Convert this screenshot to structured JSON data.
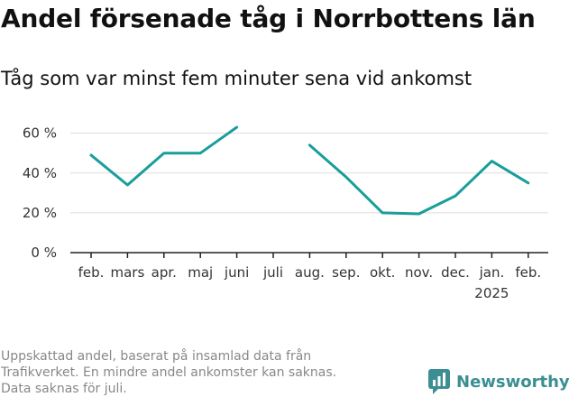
{
  "header": {
    "title": "Andel försenade tåg i Norrbottens län",
    "subtitle": "Tåg som var minst fem minuter sena vid ankomst"
  },
  "footer": {
    "note_lines": [
      "Uppskattad andel, baserat på insamlad data från",
      "Trafikverket. En mindre andel ankomster kan saknas.",
      "Data saknas för juli."
    ],
    "brand": "Newsworthy"
  },
  "colors": {
    "line": "#199e9a",
    "grid": "#dddddd",
    "axis": "#222222",
    "text": "#333333",
    "brand": "#3b8f93"
  },
  "chart_data": {
    "type": "line",
    "categories": [
      "feb.",
      "mars",
      "apr.",
      "maj",
      "juni",
      "juli",
      "aug.",
      "sep.",
      "okt.",
      "nov.",
      "dec.",
      "jan.",
      "feb."
    ],
    "year_labels": [
      "",
      "",
      "",
      "",
      "",
      "",
      "",
      "",
      "",
      "",
      "",
      "2025",
      ""
    ],
    "series": [
      {
        "values": [
          49,
          34,
          50,
          50,
          63,
          null,
          54,
          38,
          20,
          19.5,
          28.5,
          46,
          35
        ]
      }
    ],
    "yticks": [
      0,
      20,
      40,
      60
    ],
    "ytick_labels": [
      "0 %",
      "20 %",
      "40 %",
      "60 %"
    ],
    "ylim": [
      0,
      68
    ],
    "grid": true
  }
}
